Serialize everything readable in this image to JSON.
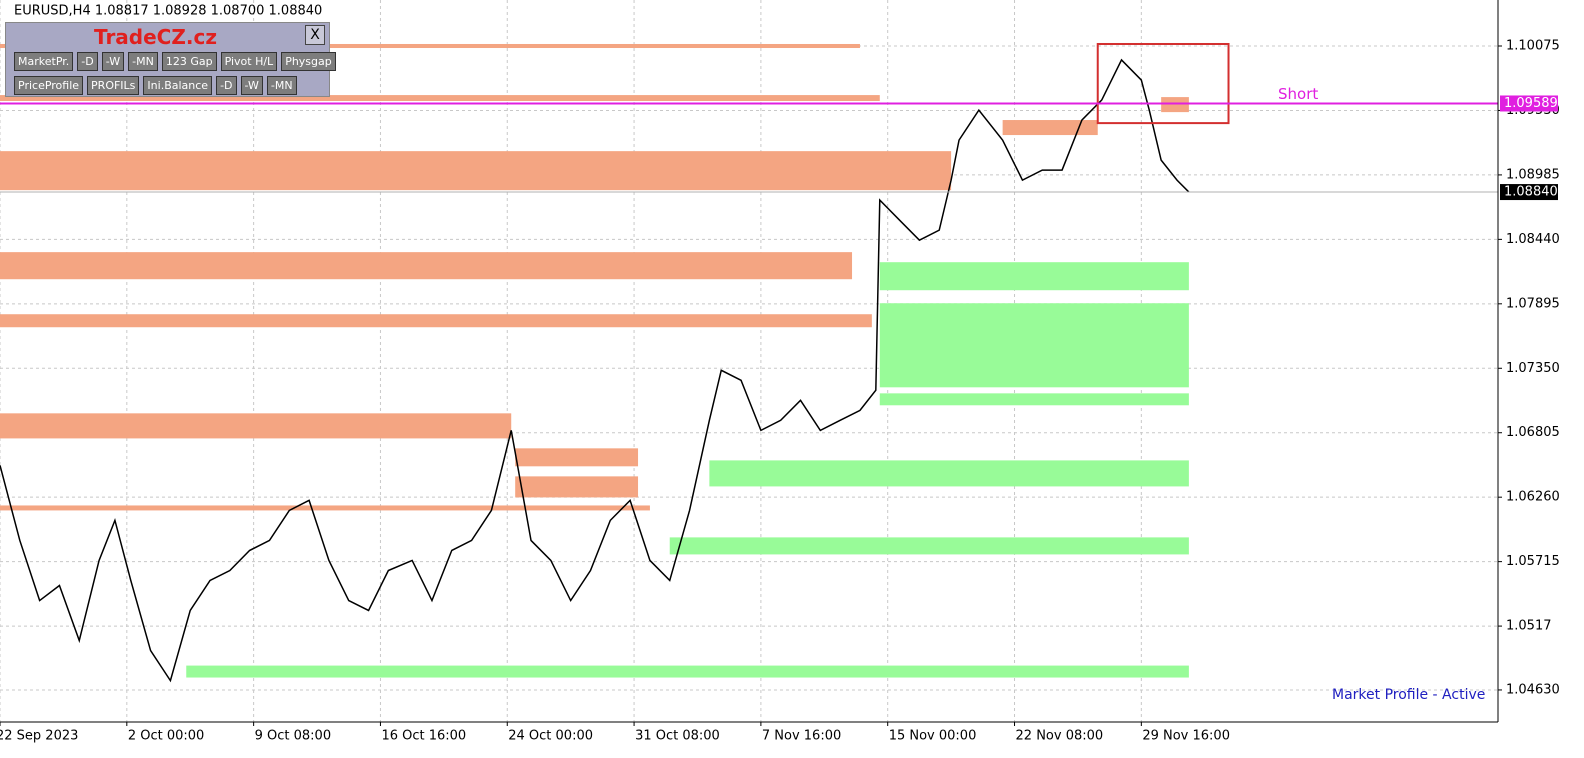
{
  "header": {
    "text": "EURUSD,H4  1.08817 1.08928 1.08700 1.08840"
  },
  "panel": {
    "title": "TradeCZ.cz",
    "close": "X",
    "row1": [
      "MarketPr.",
      "-D",
      "-W",
      "-MN",
      "123 Gap",
      "Pivot H/L",
      "Physgap"
    ],
    "row2": [
      "PriceProfile",
      "PROFILs",
      "Ini.Balance",
      "-D",
      "-W",
      "-MN"
    ]
  },
  "status": "Market Profile - Active",
  "chart_data": {
    "type": "line",
    "x": [
      0,
      5,
      10,
      15,
      20,
      25,
      29,
      33,
      38,
      43,
      48,
      53,
      58,
      63,
      68,
      73,
      78,
      83,
      88,
      93,
      98,
      104,
      109,
      114,
      119,
      124,
      129,
      134,
      139,
      144,
      149,
      154,
      159,
      164,
      169,
      174,
      179,
      182,
      187,
      192,
      197,
      202,
      207,
      212,
      217,
      221,
      222,
      227,
      232,
      237,
      240,
      242,
      247,
      253,
      258,
      263,
      268,
      273,
      278,
      283,
      288,
      290,
      293,
      297,
      300
    ],
    "series": [
      {
        "name": "EURUSD,H4",
        "color": "#000000",
        "values": [
          1.06529,
          1.05894,
          1.05386,
          1.05513,
          1.05048,
          1.05725,
          1.06064,
          1.05556,
          1.04963,
          1.04709,
          1.05302,
          1.05556,
          1.0564,
          1.0581,
          1.05894,
          1.06148,
          1.06233,
          1.05725,
          1.05386,
          1.05302,
          1.0564,
          1.05725,
          1.05386,
          1.0581,
          1.05894,
          1.06148,
          1.06825,
          1.05894,
          1.05725,
          1.05386,
          1.0564,
          1.06064,
          1.06233,
          1.05725,
          1.05556,
          1.06148,
          1.0691,
          1.07333,
          1.07248,
          1.06825,
          1.0691,
          1.07079,
          1.06825,
          1.0691,
          1.06994,
          1.07164,
          1.08772,
          1.08602,
          1.08433,
          1.08518,
          1.08941,
          1.09279,
          1.09533,
          1.09279,
          1.08941,
          1.09026,
          1.09026,
          1.09449,
          1.09618,
          1.09957,
          1.09787,
          1.09533,
          1.0911,
          1.08941,
          1.0884
        ]
      }
    ],
    "zones": [
      {
        "color": "#f4a582",
        "low": 1.10058,
        "high": 1.10092,
        "from": 0,
        "to": 217
      },
      {
        "color": "#f4a582",
        "low": 1.0961,
        "high": 1.0966,
        "from": 0,
        "to": 222
      },
      {
        "color": "#f4a582",
        "low": 1.08856,
        "high": 1.09186,
        "from": 0,
        "to": 240
      },
      {
        "color": "#f4a582",
        "low": 1.08103,
        "high": 1.08332,
        "from": 0,
        "to": 215
      },
      {
        "color": "#f4a582",
        "low": 1.07697,
        "high": 1.07807,
        "from": 0,
        "to": 220
      },
      {
        "color": "#f4a582",
        "low": 1.06757,
        "high": 1.06969,
        "from": 0,
        "to": 129
      },
      {
        "color": "#f4a582",
        "low": 1.06521,
        "high": 1.06673,
        "from": 130,
        "to": 161
      },
      {
        "color": "#f4a582",
        "low": 1.06258,
        "high": 1.06436,
        "from": 130,
        "to": 161
      },
      {
        "color": "#f4a582",
        "low": 1.06148,
        "high": 1.0619,
        "from": 0,
        "to": 164
      },
      {
        "color": "#f4a582",
        "low": 1.09322,
        "high": 1.09449,
        "from": 253,
        "to": 277
      },
      {
        "color": "#f4a582",
        "low": 1.09516,
        "high": 1.09643,
        "from": 293,
        "to": 300
      },
      {
        "color": "#98fb98",
        "low": 1.0801,
        "high": 1.08247,
        "from": 222,
        "to": 300
      },
      {
        "color": "#98fb98",
        "low": 1.07189,
        "high": 1.079,
        "from": 222,
        "to": 300
      },
      {
        "color": "#98fb98",
        "low": 1.07037,
        "high": 1.07138,
        "from": 222,
        "to": 300
      },
      {
        "color": "#98fb98",
        "low": 1.06351,
        "high": 1.06571,
        "from": 179,
        "to": 300
      },
      {
        "color": "#98fb98",
        "low": 1.05776,
        "high": 1.0592,
        "from": 169,
        "to": 300
      },
      {
        "color": "#98fb98",
        "low": 1.04735,
        "high": 1.04836,
        "from": 47,
        "to": 300
      }
    ],
    "box": {
      "color": "#d32f2f",
      "low": 1.09423,
      "high": 1.10092,
      "from": 277,
      "to": 310
    },
    "short_line": {
      "value": 1.09589,
      "label": "Short",
      "color": "#e020e0"
    },
    "last_price": {
      "value": 1.0884,
      "label": "1.08840"
    },
    "xlim": [
      0,
      378
    ],
    "ylim": [
      1.04359,
      1.10464
    ],
    "xticks": [
      {
        "value": 0,
        "label": "22 Sep 2023"
      },
      {
        "value": 32,
        "label": "2 Oct 00:00"
      },
      {
        "value": 64,
        "label": "9 Oct 08:00"
      },
      {
        "value": 96,
        "label": "16 Oct 16:00"
      },
      {
        "value": 128,
        "label": "24 Oct 00:00"
      },
      {
        "value": 160,
        "label": "31 Oct 08:00"
      },
      {
        "value": 192,
        "label": "7 Nov 16:00"
      },
      {
        "value": 224,
        "label": "15 Nov 00:00"
      },
      {
        "value": 256,
        "label": "22 Nov 08:00"
      },
      {
        "value": 288,
        "label": "29 Nov 16:00"
      }
    ],
    "yticks": [
      1.10075,
      {
        "value": 1.0953,
        "label": "1.09530"
      },
      1.08985,
      {
        "value": 1.0844,
        "label": "1.08440"
      },
      1.07895,
      {
        "value": 1.0735,
        "label": "1.07350"
      },
      1.06805,
      {
        "value": 1.0626,
        "label": "1.06260"
      },
      1.05715,
      1.0517,
      {
        "value": 1.0463,
        "label": "1.04630"
      }
    ],
    "grid": true
  }
}
